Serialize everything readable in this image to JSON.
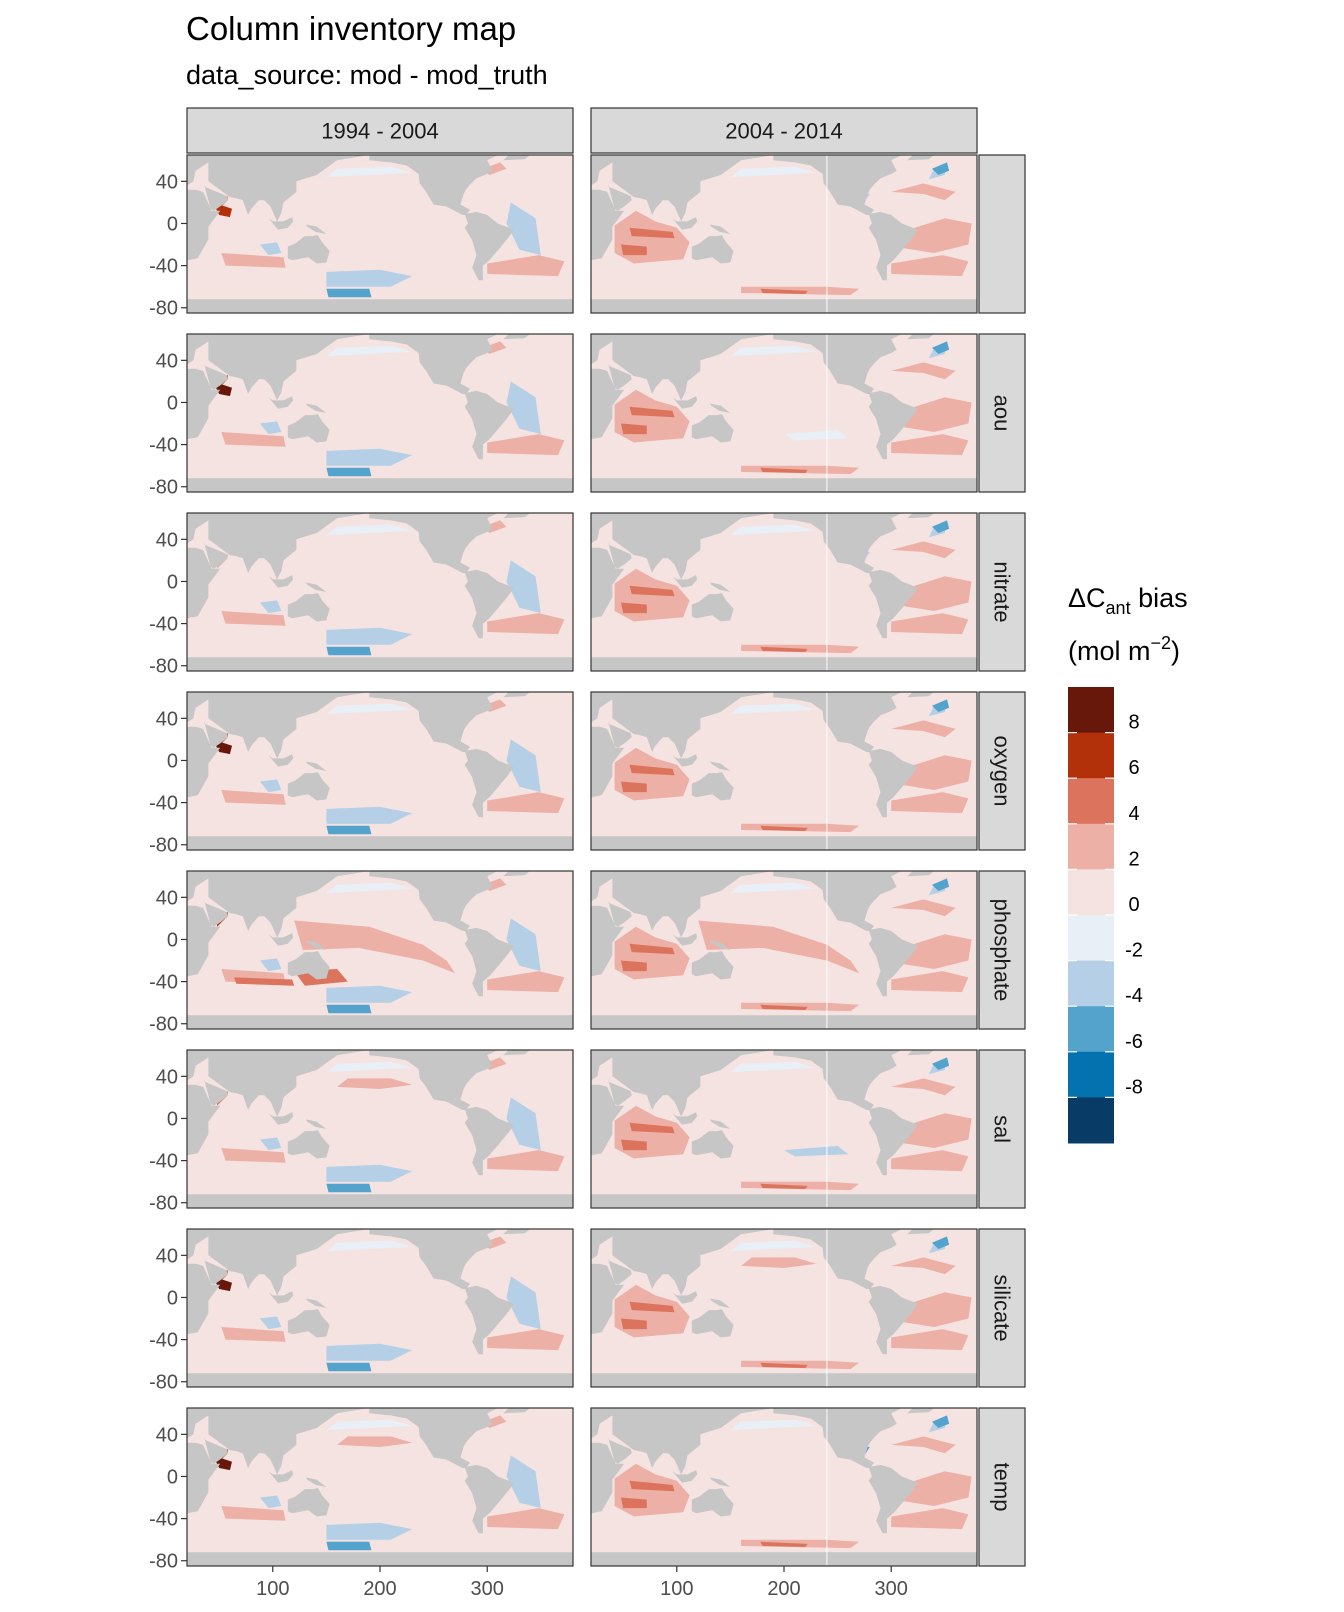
{
  "chart_data": {
    "type": "heatmap",
    "title": "Column inventory map",
    "subtitle": "data_source: mod - mod_truth",
    "columns": [
      "1994 - 2004",
      "2004 - 2014"
    ],
    "rows": [
      "",
      "aou",
      "nitrate",
      "oxygen",
      "phosphate",
      "sal",
      "silicate",
      "temp"
    ],
    "x_ticks": [
      100,
      200,
      300
    ],
    "y_ticks": [
      40,
      0,
      -40,
      -80
    ],
    "xlim": [
      20,
      380
    ],
    "ylim": [
      -85,
      65
    ],
    "legend": {
      "title_main": "ΔC",
      "title_sub": "ant",
      "title_rest": " bias",
      "unit_open": "(mol m",
      "unit_sup": "−2",
      "unit_close": ")",
      "labels": [
        "8",
        "6",
        "4",
        "2",
        "0",
        "-2",
        "-4",
        "-6",
        "-8"
      ],
      "colors": [
        "#67180a",
        "#b2300a",
        "#dc735c",
        "#edb0a6",
        "#f5e3e2",
        "#e9eff6",
        "#b5d0e6",
        "#54a3cc",
        "#0572b0",
        "#083b66"
      ]
    },
    "colors": {
      "land": "#c6c6c6",
      "strip": "#d9d9d9",
      "panel_border": "#333333"
    }
  }
}
